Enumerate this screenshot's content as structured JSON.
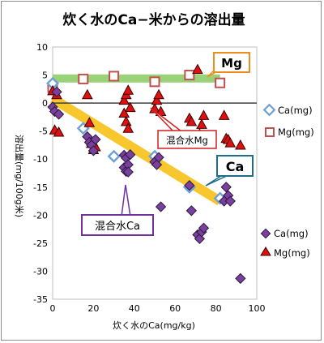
{
  "chart_data": {
    "type": "scatter",
    "title": "炊く水のCa−米からの溶出量",
    "xlabel": "炊く水のCa(mg/kg)",
    "ylabel": "溶出量(mg/100g米)",
    "xlim": [
      0,
      100
    ],
    "ylim": [
      -35,
      10
    ],
    "x_ticks": [
      0,
      20,
      40,
      60,
      80,
      100
    ],
    "y_ticks": [
      10,
      5,
      0,
      -5,
      -10,
      -15,
      -20,
      -25,
      -30,
      -35
    ],
    "grid": false,
    "legend_position": "right",
    "series": [
      {
        "name": "Ca(mg)",
        "marker": "diamond-open",
        "color": "#6fa0d6",
        "x": [
          0,
          15,
          30,
          50,
          67,
          82
        ],
        "y": [
          3.5,
          -4.5,
          -9.5,
          -9.5,
          -15,
          -17
        ]
      },
      {
        "name": "Mg(mg)",
        "marker": "square-open",
        "color": "#c0504d",
        "x": [
          0,
          15,
          30,
          50,
          67,
          82
        ],
        "y": [
          2.8,
          4.3,
          4.8,
          3.8,
          5,
          3.6
        ]
      },
      {
        "name": "Ca(mg)",
        "marker": "diamond-filled",
        "color": "#7b3fa0",
        "x": [
          0,
          1,
          2,
          3,
          17,
          18,
          19,
          20,
          21,
          35,
          35,
          36,
          36,
          37,
          37,
          38,
          50,
          51,
          52,
          53,
          67,
          68,
          71,
          72,
          73,
          74,
          84,
          85,
          86,
          87,
          92
        ],
        "y": [
          -0.7,
          -1.5,
          2,
          -2,
          -6,
          -7,
          -7.5,
          -8.5,
          -6.5,
          -9.3,
          -11.5,
          -12.2,
          -9.8,
          -11,
          -12.3,
          -9.2,
          -10.5,
          -11,
          -9.7,
          -18.5,
          -14.7,
          -19.2,
          -23.5,
          -24.2,
          -23,
          -22.3,
          -17.5,
          -15,
          -16.5,
          -17.5,
          -31.3
        ]
      },
      {
        "name": "Mg(mg)",
        "marker": "triangle-filled",
        "color": "#e01010",
        "x": [
          0,
          1,
          2,
          3,
          17,
          18,
          19,
          20,
          21,
          35,
          35,
          36,
          36,
          37,
          37,
          38,
          50,
          51,
          52,
          53,
          67,
          68,
          71,
          72,
          73,
          74,
          84,
          85,
          86,
          87,
          92
        ],
        "y": [
          2.2,
          -4.8,
          1.5,
          -5.2,
          1.5,
          -3.5,
          -7.2,
          -8.3,
          -7.8,
          -1.8,
          0.5,
          1.5,
          -3.3,
          2.3,
          -4.5,
          -0.8,
          -1,
          0.5,
          1.5,
          -1.5,
          -2.7,
          -3.3,
          6,
          -5.5,
          -3.8,
          -2.2,
          -2.2,
          -6.3,
          -6.5,
          -7.1,
          -7.5
        ]
      }
    ],
    "trend_bands": [
      {
        "label": "Mg",
        "color": "#8fce6a",
        "x": [
          0,
          82
        ],
        "y": [
          4.4,
          4.4
        ]
      },
      {
        "label": "Ca",
        "color": "#f7c217",
        "x": [
          0,
          82
        ],
        "y": [
          0.8,
          -17.5
        ]
      }
    ],
    "zero_line": 0,
    "annotations": [
      {
        "text": "Mg",
        "border_color": "#f08c1e",
        "type": "callout"
      },
      {
        "text": "Ca",
        "border_color": "#1f6e8c",
        "type": "callout"
      },
      {
        "text": "混合水Mg",
        "border_color": "#d02020",
        "type": "callout"
      },
      {
        "text": "混合水Ca",
        "border_color": "#7030a0",
        "type": "callout"
      }
    ]
  }
}
